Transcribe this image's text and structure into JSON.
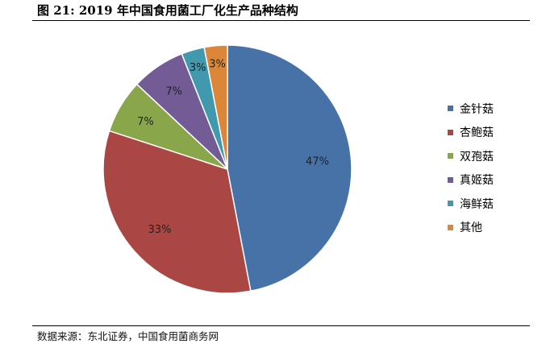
{
  "header": {
    "title": "图 21: 2019 年中国食用菌工厂化生产品种结构"
  },
  "footer": {
    "source": "数据来源：东北证券，中国食用菌商务网"
  },
  "chart_data": {
    "type": "pie",
    "title": "",
    "legend_position": "right",
    "categories": [
      "金针菇",
      "杏鲍菇",
      "双孢菇",
      "真姬菇",
      "海鲜菇",
      "其他"
    ],
    "values": [
      47,
      33,
      7,
      7,
      3,
      3
    ],
    "data_labels": [
      "47%",
      "33%",
      "7%",
      "7%",
      "3%",
      "3%"
    ],
    "colors": [
      "#4672A8",
      "#AA4744",
      "#8AA64B",
      "#735B96",
      "#4099AF",
      "#DB8639"
    ],
    "start_angle_deg": 0,
    "direction": "clockwise"
  }
}
